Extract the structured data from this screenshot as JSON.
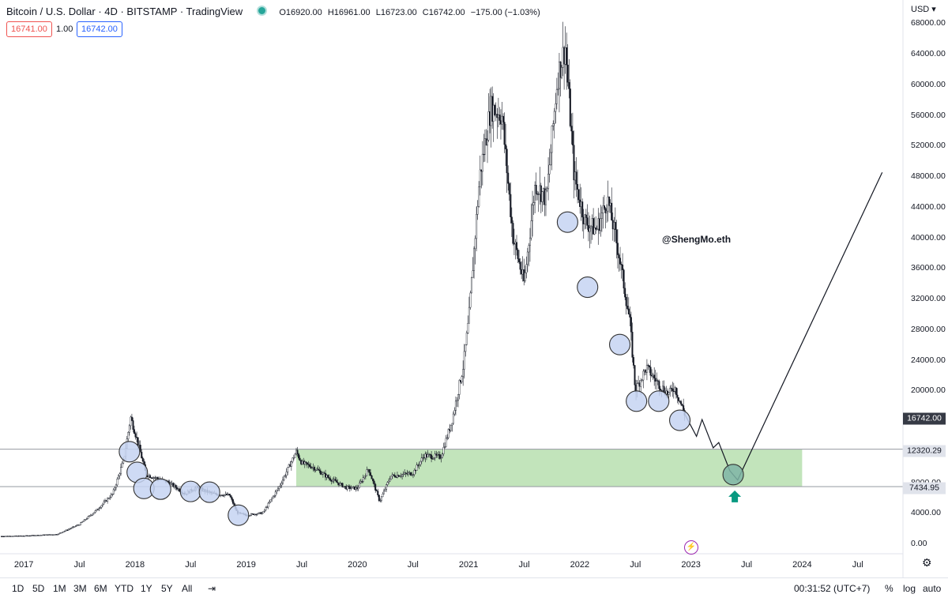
{
  "header": {
    "title": "Bitcoin / U.S. Dollar · 4D · BITSTAMP · TradingView",
    "ohlc": {
      "open": "O16920.00",
      "high": "H16961.00",
      "low": "L16723.00",
      "close": "C16742.00",
      "change": "−175.00 (−1.03%)"
    },
    "sell_price": "16741.00",
    "lot": "1.00",
    "buy_price": "16742.00"
  },
  "currency": "USD",
  "watermark": "@ShengMo.eth",
  "price_tags": {
    "last": "16742.00",
    "upper_zone": "12320.29",
    "lower_zone": "7434.95"
  },
  "colors": {
    "zone_fill": "#bfe3b7",
    "circle_fill": "#c5d3f2",
    "circle_stroke": "#333333",
    "target_circle_fill": "#7fb5a6",
    "arrow": "#089981",
    "candles": "#131722"
  },
  "bottom_bar": {
    "ranges": [
      "1D",
      "5D",
      "1M",
      "3M",
      "6M",
      "YTD",
      "1Y",
      "5Y",
      "All"
    ],
    "time": "00:31:52 (UTC+7)",
    "percent": "%",
    "log": "log",
    "auto": "auto"
  },
  "icons": {
    "settings": "gear-icon",
    "goto_date": "calendar-goto-icon",
    "flash": "lightning-icon"
  },
  "chart_data": {
    "type": "line",
    "title": "Bitcoin / U.S. Dollar · 4D · BITSTAMP · TradingView",
    "ylim": [
      0,
      70000
    ],
    "y_ticks": [
      "68000.00",
      "64000.00",
      "60000.00",
      "56000.00",
      "52000.00",
      "48000.00",
      "44000.00",
      "40000.00",
      "36000.00",
      "32000.00",
      "28000.00",
      "24000.00",
      "20000.00",
      "8000.00",
      "4000.00",
      "0.00"
    ],
    "x_ticks": [
      "2017",
      "Jul",
      "2018",
      "Jul",
      "2019",
      "Jul",
      "2020",
      "Jul",
      "2021",
      "Jul",
      "2022",
      "Jul",
      "2023",
      "Jul",
      "2024",
      "Jul"
    ],
    "x_tick_dates": [
      2017.0,
      2017.5,
      2018.0,
      2018.5,
      2019.0,
      2019.5,
      2020.0,
      2020.5,
      2021.0,
      2021.5,
      2022.0,
      2022.5,
      2023.0,
      2023.5,
      2024.0,
      2024.5
    ],
    "xlim": [
      2016.8,
      2024.85
    ],
    "series": [
      {
        "x": [
          2016.8,
          2017.0,
          2017.3,
          2017.5,
          2017.65,
          2017.8,
          2017.9,
          2017.96,
          2018.02,
          2018.1,
          2018.2,
          2018.3,
          2018.45,
          2018.55,
          2018.7,
          2018.85,
          2018.92,
          2019.0,
          2019.15,
          2019.3,
          2019.45,
          2019.5,
          2019.6,
          2019.75,
          2019.9,
          2020.0,
          2020.1,
          2020.2,
          2020.3,
          2020.5,
          2020.6,
          2020.75,
          2020.85,
          2020.95,
          2021.0,
          2021.1,
          2021.2,
          2021.3,
          2021.4,
          2021.5,
          2021.6,
          2021.7,
          2021.8,
          2021.87,
          2021.95,
          2022.05,
          2022.15,
          2022.25,
          2022.35,
          2022.45,
          2022.5,
          2022.6,
          2022.7,
          2022.8,
          2022.85,
          2022.95
        ],
        "y": [
          950,
          1000,
          1200,
          2500,
          4300,
          6500,
          11000,
          16500,
          13500,
          9000,
          8500,
          8000,
          6500,
          7300,
          6500,
          6300,
          4000,
          3700,
          4000,
          7500,
          12000,
          10500,
          10000,
          8500,
          7300,
          7200,
          9800,
          5500,
          8800,
          9200,
          11500,
          11300,
          16000,
          23000,
          29000,
          48000,
          57000,
          56000,
          40000,
          34000,
          47000,
          45000,
          61000,
          65000,
          48000,
          42000,
          41000,
          45000,
          38000,
          29000,
          20000,
          23000,
          21000,
          19500,
          20500,
          16742
        ]
      },
      {
        "name": "",
        "x": [
          2022.95,
          2023.05,
          2023.1,
          2023.2,
          2023.25,
          2023.35,
          2023.42,
          2024.72
        ],
        "y": [
          16742,
          14000,
          16200,
          12500,
          13200,
          9500,
          8300,
          48500
        ]
      }
    ],
    "zones": [
      {
        "y_low": 7434.95,
        "y_high": 12320.29,
        "x_start": 2019.45,
        "x_end": 2024.0
      }
    ],
    "circles": [
      {
        "x": 2017.95,
        "y": 12000
      },
      {
        "x": 2018.02,
        "y": 9300
      },
      {
        "x": 2018.08,
        "y": 7200
      },
      {
        "x": 2018.23,
        "y": 7100
      },
      {
        "x": 2018.5,
        "y": 6800
      },
      {
        "x": 2018.67,
        "y": 6700
      },
      {
        "x": 2018.93,
        "y": 3700
      },
      {
        "x": 2021.89,
        "y": 42000
      },
      {
        "x": 2022.07,
        "y": 33500
      },
      {
        "x": 2022.36,
        "y": 26000
      },
      {
        "x": 2022.51,
        "y": 18600
      },
      {
        "x": 2022.71,
        "y": 18600
      },
      {
        "x": 2022.9,
        "y": 16100
      },
      {
        "x": 2023.38,
        "y": 9000,
        "target": true
      }
    ]
  }
}
